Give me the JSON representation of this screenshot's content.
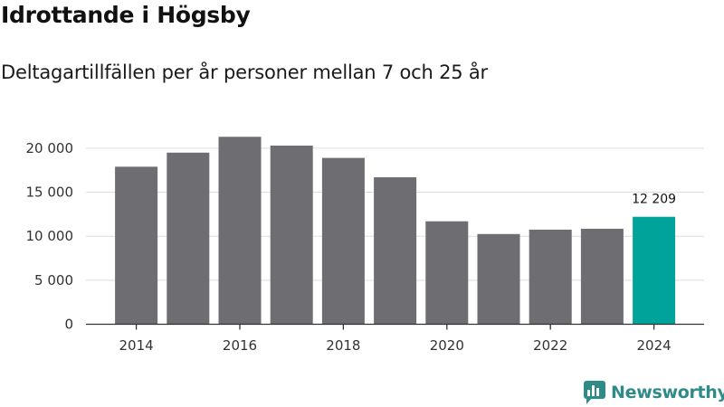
{
  "header": {
    "title": "Idrottande i Högsby",
    "subtitle": "Deltagartillfällen per år personer mellan 7 och 25 år"
  },
  "brand": {
    "name": "Newsworthy",
    "icon": "newsworthy-logo-icon"
  },
  "colors": {
    "bar": "#6e6d72",
    "highlight": "#00a39a",
    "grid": "#dddddd",
    "axis": "#333333",
    "brand": "#2e8b88"
  },
  "chart_data": {
    "type": "bar",
    "title": "Idrottande i Högsby",
    "subtitle": "Deltagartillfällen per år personer mellan 7 och 25 år",
    "xlabel": "",
    "ylabel": "",
    "categories": [
      "2014",
      "2015",
      "2016",
      "2017",
      "2018",
      "2019",
      "2020",
      "2021",
      "2022",
      "2023",
      "2024"
    ],
    "values": [
      17900,
      19500,
      21300,
      20300,
      18900,
      16700,
      11700,
      10250,
      10750,
      10850,
      12209
    ],
    "ylim": [
      0,
      22000
    ],
    "yticks": [
      0,
      5000,
      10000,
      15000,
      20000
    ],
    "ytick_labels": [
      "0",
      "5 000",
      "10 000",
      "15 000",
      "20 000"
    ],
    "xtick_labels": [
      "2014",
      "2016",
      "2018",
      "2020",
      "2022",
      "2024"
    ],
    "highlight_index": 10,
    "data_labels": [
      {
        "index": 10,
        "text": "12 209"
      }
    ],
    "grid": true,
    "legend": "none"
  }
}
